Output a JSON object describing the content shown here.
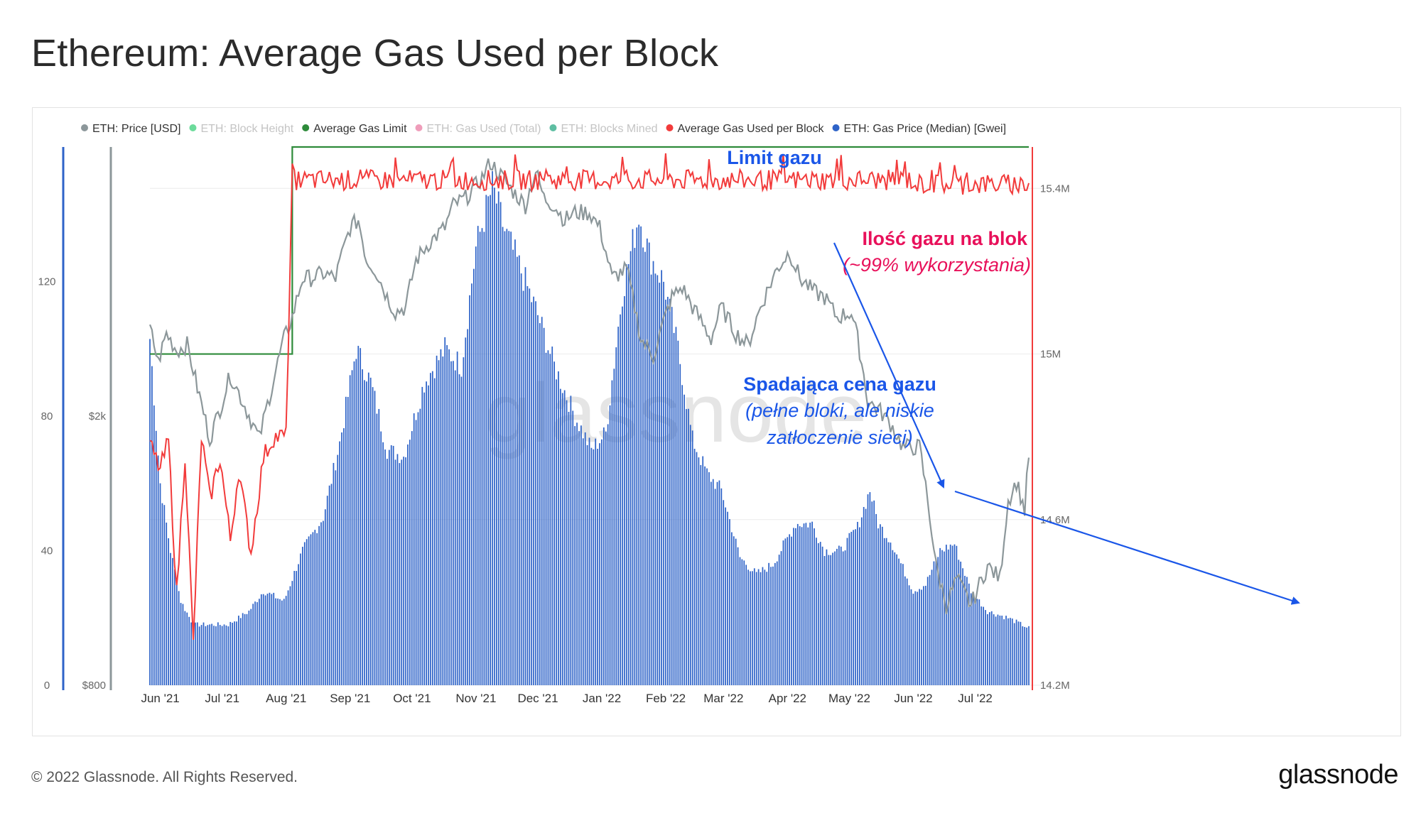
{
  "title": "Ethereum: Average Gas Used per Block",
  "footer": {
    "copyright": "© 2022 Glassnode. All Rights Reserved.",
    "logo": "glassnode"
  },
  "watermark": "glassnode",
  "colors": {
    "price": "#8c979a",
    "block_height": "#2ecc71",
    "gas_limit": "#2e8b3a",
    "gas_used_total": "#e8749c",
    "blocks_mined": "#1aa37a",
    "gas_used_per_block": "#f23b3b",
    "gas_price": "#2e63c8",
    "annotation_blue": "#1a56e8",
    "annotation_pink": "#e8105a"
  },
  "chart_data": {
    "type": "bar",
    "legend": [
      {
        "label": "ETH: Price [USD]",
        "color": "#8c979a",
        "dimmed": false
      },
      {
        "label": "ETH: Block Height",
        "color": "#2ecc71",
        "dimmed": true
      },
      {
        "label": "Average Gas Limit",
        "color": "#2e8b3a",
        "dimmed": false
      },
      {
        "label": "ETH: Gas Used (Total)",
        "color": "#e8749c",
        "dimmed": true
      },
      {
        "label": "ETH: Blocks Mined",
        "color": "#1aa37a",
        "dimmed": true
      },
      {
        "label": "Average Gas Used per Block",
        "color": "#f23b3b",
        "dimmed": false
      },
      {
        "label": "ETH: Gas Price (Median) [Gwei]",
        "color": "#2e63c8",
        "dimmed": false
      }
    ],
    "x_labels": [
      "Jun '21",
      "Jul '21",
      "Aug '21",
      "Sep '21",
      "Oct '21",
      "Nov '21",
      "Dec '21",
      "Jan '22",
      "Feb '22",
      "Mar '22",
      "Apr '22",
      "May '22",
      "Jun '22",
      "Jul '22"
    ],
    "x_range": [
      "2021-05-28",
      "2022-07-28"
    ],
    "axes": {
      "gas_price_gwei": {
        "ticks": [
          "0",
          "40",
          "80",
          "120"
        ],
        "range": [
          0,
          160
        ]
      },
      "price_usd": {
        "ticks": [
          "$800",
          "$2k"
        ],
        "scale": "log",
        "range": [
          800,
          5000
        ]
      },
      "gas_used": {
        "ticks": [
          "14.2M",
          "14.6M",
          "15M",
          "15.4M"
        ],
        "range": [
          14.2,
          15.5
        ]
      }
    },
    "series": [
      {
        "name": "ETH: Gas Price (Median) [Gwei]",
        "type": "bar",
        "axis": "gas_price_gwei",
        "anchors": [
          [
            "2021-05-28",
            103
          ],
          [
            "2021-06-02",
            60
          ],
          [
            "2021-06-07",
            40
          ],
          [
            "2021-06-12",
            25
          ],
          [
            "2021-06-18",
            18
          ],
          [
            "2021-06-26",
            18
          ],
          [
            "2021-07-05",
            18
          ],
          [
            "2021-07-15",
            22
          ],
          [
            "2021-07-22",
            28
          ],
          [
            "2021-08-01",
            25
          ],
          [
            "2021-08-10",
            40
          ],
          [
            "2021-08-20",
            50
          ],
          [
            "2021-08-28",
            72
          ],
          [
            "2021-09-05",
            100
          ],
          [
            "2021-09-12",
            90
          ],
          [
            "2021-09-20",
            70
          ],
          [
            "2021-09-28",
            68
          ],
          [
            "2021-10-08",
            90
          ],
          [
            "2021-10-18",
            100
          ],
          [
            "2021-10-26",
            95
          ],
          [
            "2021-11-02",
            130
          ],
          [
            "2021-11-10",
            148
          ],
          [
            "2021-11-16",
            135
          ],
          [
            "2021-11-24",
            123
          ],
          [
            "2021-12-02",
            110
          ],
          [
            "2021-12-10",
            95
          ],
          [
            "2021-12-20",
            80
          ],
          [
            "2021-12-28",
            70
          ],
          [
            "2022-01-04",
            75
          ],
          [
            "2022-01-12",
            117
          ],
          [
            "2022-01-20",
            140
          ],
          [
            "2022-01-25",
            128
          ],
          [
            "2022-02-01",
            120
          ],
          [
            "2022-02-08",
            100
          ],
          [
            "2022-02-15",
            73
          ],
          [
            "2022-02-22",
            63
          ],
          [
            "2022-03-01",
            58
          ],
          [
            "2022-03-10",
            38
          ],
          [
            "2022-03-18",
            33
          ],
          [
            "2022-03-26",
            36
          ],
          [
            "2022-04-06",
            48
          ],
          [
            "2022-04-14",
            48
          ],
          [
            "2022-04-20",
            40
          ],
          [
            "2022-04-28",
            40
          ],
          [
            "2022-05-06",
            47
          ],
          [
            "2022-05-12",
            58
          ],
          [
            "2022-05-16",
            48
          ],
          [
            "2022-05-22",
            43
          ],
          [
            "2022-06-02",
            28
          ],
          [
            "2022-06-08",
            30
          ],
          [
            "2022-06-15",
            40
          ],
          [
            "2022-06-22",
            42
          ],
          [
            "2022-06-30",
            28
          ],
          [
            "2022-07-08",
            22
          ],
          [
            "2022-07-18",
            20
          ],
          [
            "2022-07-28",
            17
          ]
        ]
      },
      {
        "name": "ETH: Price [USD]",
        "type": "line",
        "axis": "price_usd",
        "anchors": [
          [
            "2021-05-28",
            2700
          ],
          [
            "2021-06-01",
            2400
          ],
          [
            "2021-06-05",
            2650
          ],
          [
            "2021-06-10",
            2500
          ],
          [
            "2021-06-15",
            2550
          ],
          [
            "2021-06-20",
            2200
          ],
          [
            "2021-06-26",
            1850
          ],
          [
            "2021-07-01",
            2050
          ],
          [
            "2021-07-06",
            2300
          ],
          [
            "2021-07-12",
            2100
          ],
          [
            "2021-07-20",
            1850
          ],
          [
            "2021-07-26",
            2200
          ],
          [
            "2021-08-01",
            2600
          ],
          [
            "2021-08-05",
            2800
          ],
          [
            "2021-08-10",
            3200
          ],
          [
            "2021-08-14",
            3200
          ],
          [
            "2021-08-20",
            3250
          ],
          [
            "2021-08-26",
            3200
          ],
          [
            "2021-09-02",
            3800
          ],
          [
            "2021-09-06",
            3900
          ],
          [
            "2021-09-10",
            3400
          ],
          [
            "2021-09-14",
            3300
          ],
          [
            "2021-09-20",
            3000
          ],
          [
            "2021-09-24",
            2850
          ],
          [
            "2021-09-29",
            2900
          ],
          [
            "2021-10-04",
            3400
          ],
          [
            "2021-10-10",
            3600
          ],
          [
            "2021-10-18",
            3800
          ],
          [
            "2021-10-22",
            4100
          ],
          [
            "2021-10-28",
            4200
          ],
          [
            "2021-11-05",
            4500
          ],
          [
            "2021-11-09",
            4750
          ],
          [
            "2021-11-15",
            4500
          ],
          [
            "2021-11-20",
            4300
          ],
          [
            "2021-11-26",
            4100
          ],
          [
            "2021-12-01",
            4600
          ],
          [
            "2021-12-05",
            4200
          ],
          [
            "2021-12-10",
            4100
          ],
          [
            "2021-12-15",
            3900
          ],
          [
            "2021-12-20",
            4000
          ],
          [
            "2021-12-27",
            4000
          ],
          [
            "2022-01-01",
            3800
          ],
          [
            "2022-01-07",
            3200
          ],
          [
            "2022-01-14",
            3300
          ],
          [
            "2022-01-21",
            2600
          ],
          [
            "2022-01-27",
            2450
          ],
          [
            "2022-02-05",
            3000
          ],
          [
            "2022-02-10",
            3100
          ],
          [
            "2022-02-15",
            2900
          ],
          [
            "2022-02-24",
            2600
          ],
          [
            "2022-03-01",
            2900
          ],
          [
            "2022-03-08",
            2650
          ],
          [
            "2022-03-14",
            2550
          ],
          [
            "2022-03-20",
            2900
          ],
          [
            "2022-03-28",
            3300
          ],
          [
            "2022-04-03",
            3500
          ],
          [
            "2022-04-08",
            3200
          ],
          [
            "2022-04-15",
            3050
          ],
          [
            "2022-04-20",
            3000
          ],
          [
            "2022-04-26",
            2800
          ],
          [
            "2022-05-03",
            2850
          ],
          [
            "2022-05-06",
            2600
          ],
          [
            "2022-05-11",
            2100
          ],
          [
            "2022-05-16",
            2050
          ],
          [
            "2022-05-22",
            1950
          ],
          [
            "2022-05-28",
            1800
          ],
          [
            "2022-06-05",
            1800
          ],
          [
            "2022-06-13",
            1200
          ],
          [
            "2022-06-18",
            1050
          ],
          [
            "2022-06-23",
            1150
          ],
          [
            "2022-06-30",
            1050
          ],
          [
            "2022-07-08",
            1200
          ],
          [
            "2022-07-14",
            1150
          ],
          [
            "2022-07-18",
            1500
          ],
          [
            "2022-07-22",
            1600
          ],
          [
            "2022-07-26",
            1450
          ],
          [
            "2022-07-28",
            1750
          ]
        ]
      },
      {
        "name": "Average Gas Used per Block",
        "type": "line",
        "axis": "gas_used",
        "anchors": [
          [
            "2021-05-28",
            14.78
          ],
          [
            "2021-06-02",
            14.72
          ],
          [
            "2021-06-06",
            14.79
          ],
          [
            "2021-06-10",
            14.42
          ],
          [
            "2021-06-14",
            14.76
          ],
          [
            "2021-06-18",
            14.3
          ],
          [
            "2021-06-22",
            14.8
          ],
          [
            "2021-06-26",
            14.65
          ],
          [
            "2021-07-01",
            14.75
          ],
          [
            "2021-07-06",
            14.55
          ],
          [
            "2021-07-10",
            14.72
          ],
          [
            "2021-07-16",
            14.52
          ],
          [
            "2021-07-22",
            14.75
          ],
          [
            "2021-07-27",
            14.8
          ],
          [
            "2021-08-02",
            14.8
          ],
          [
            "2021-08-05",
            15.44
          ]
        ],
        "noise": "flat near 15.42M with small spikes up to 15.45M from Aug '21 to Jul '22"
      },
      {
        "name": "Average Gas Limit",
        "type": "step",
        "axis": "gas_used",
        "values": [
          [
            "2021-05-28",
            15.0
          ],
          [
            "2021-08-05",
            15.0
          ],
          [
            "2021-08-05",
            15.5
          ],
          [
            "2022-07-28",
            15.5
          ]
        ]
      }
    ],
    "annotations": [
      {
        "text": "Limit gazu",
        "color": "#1a56e8",
        "bold": true
      },
      {
        "text": "Ilość gazu na blok",
        "color": "#e8105a",
        "bold": true
      },
      {
        "text": "(~99% wykorzystania)",
        "color": "#e8105a",
        "italic": true
      },
      {
        "text": "Spadająca cena gazu",
        "color": "#1a56e8",
        "bold": true
      },
      {
        "text": "(pełne bloki, ale niskie",
        "color": "#1a56e8",
        "italic": true
      },
      {
        "text": "zatłoczenie sieci)",
        "color": "#1a56e8",
        "italic": true
      }
    ]
  }
}
